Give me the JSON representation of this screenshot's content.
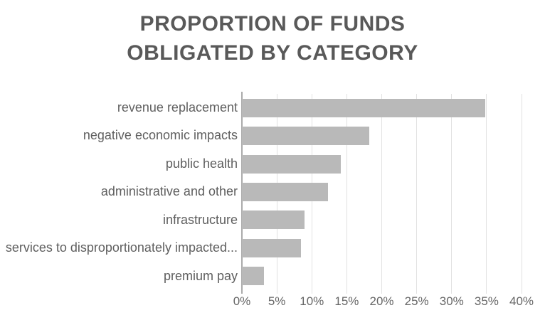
{
  "chart_data": {
    "type": "bar",
    "orientation": "horizontal",
    "title": "PROPORTION OF FUNDS\nOBLIGATED BY CATEGORY",
    "categories": [
      "revenue replacement",
      "negative economic impacts",
      "public health",
      "administrative and other",
      "infrastructure",
      "services to disproportionately impacted...",
      "premium pay"
    ],
    "values": [
      34.8,
      18.2,
      14.1,
      12.3,
      9.0,
      8.4,
      3.2
    ],
    "unit": "%",
    "xlabel": "",
    "ylabel": "",
    "xlim": [
      0,
      40
    ],
    "x_tick_step": 5,
    "x_tick_labels": [
      "0%",
      "5%",
      "10%",
      "15%",
      "20%",
      "25%",
      "30%",
      "35%",
      "40%"
    ],
    "grid": true,
    "legend": false
  },
  "colors": {
    "background": "#ffffff",
    "bar_fill": "#b9b9b9",
    "gridline": "#e2e2e2",
    "axis_line": "#ababab",
    "title_text": "#595959",
    "category_label": "#5f5f5f",
    "tick_label": "#666666"
  }
}
